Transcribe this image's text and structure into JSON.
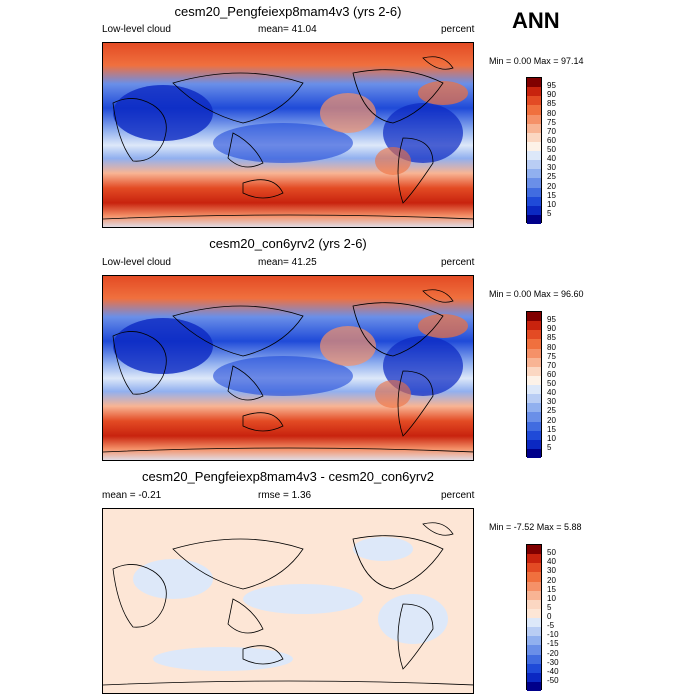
{
  "season": "ANN",
  "panels": [
    {
      "title": "cesm20_Pengfeiexp8mam4v3 (yrs 2-6)",
      "left_label": "Low-level cloud",
      "center_label": "mean=  41.04",
      "right_label": "percent",
      "minmax": "Min =   0.00 Max =  97.14",
      "levels": [
        "95",
        "90",
        "85",
        "80",
        "75",
        "70",
        "60",
        "50",
        "40",
        "30",
        "25",
        "20",
        "15",
        "10",
        "5"
      ],
      "colors": [
        "#800000",
        "#c8230e",
        "#e34b24",
        "#f0703e",
        "#f59168",
        "#f8b494",
        "#fbd7c2",
        "#fdf2e8",
        "#dde8f9",
        "#b9cdf4",
        "#91b0ef",
        "#6a8fe8",
        "#416ce0",
        "#1f4ad8",
        "#0b28c2",
        "#00008a"
      ]
    },
    {
      "title": "cesm20_con6yrv2 (yrs 2-6)",
      "left_label": "Low-level cloud",
      "center_label": "mean=  41.25",
      "right_label": "percent",
      "minmax": "Min =   0.00 Max =  96.60",
      "levels": [
        "95",
        "90",
        "85",
        "80",
        "75",
        "70",
        "60",
        "50",
        "40",
        "30",
        "25",
        "20",
        "15",
        "10",
        "5"
      ],
      "colors": [
        "#800000",
        "#c8230e",
        "#e34b24",
        "#f0703e",
        "#f59168",
        "#f8b494",
        "#fbd7c2",
        "#fdf2e8",
        "#dde8f9",
        "#b9cdf4",
        "#91b0ef",
        "#6a8fe8",
        "#416ce0",
        "#1f4ad8",
        "#0b28c2",
        "#00008a"
      ]
    },
    {
      "title": "cesm20_Pengfeiexp8mam4v3 - cesm20_con6yrv2",
      "left_label": "mean =  -0.21",
      "center_label": "rmse =   1.36",
      "right_label": "percent",
      "minmax": "Min =  -7.52 Max =   5.88",
      "levels": [
        "50",
        "40",
        "30",
        "20",
        "15",
        "10",
        "5",
        "0",
        "-5",
        "-10",
        "-15",
        "-20",
        "-30",
        "-40",
        "-50"
      ],
      "colors": [
        "#800000",
        "#c8230e",
        "#e34b24",
        "#f0703e",
        "#f59168",
        "#f8b494",
        "#fbd7c2",
        "#fde6d6",
        "#dde8f9",
        "#b9cdf4",
        "#91b0ef",
        "#6a8fe8",
        "#416ce0",
        "#1f4ad8",
        "#0b28c2",
        "#00008a"
      ]
    }
  ]
}
